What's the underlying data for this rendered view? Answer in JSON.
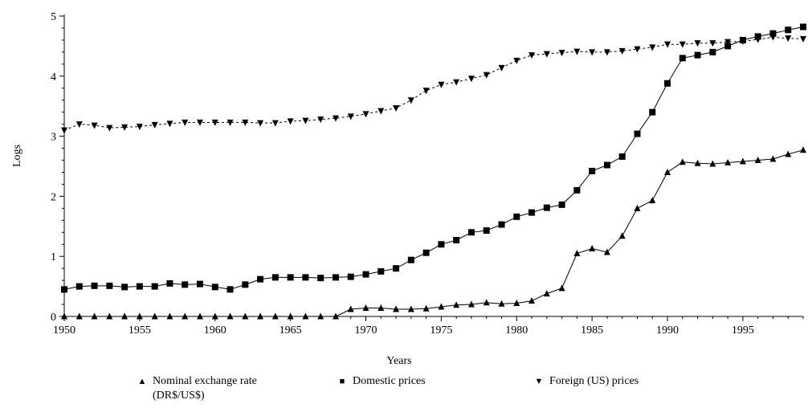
{
  "chart_data": {
    "type": "line",
    "title": "",
    "xlabel": "Years",
    "ylabel": "Logs",
    "xlim": [
      1950,
      1999
    ],
    "ylim": [
      0,
      5
    ],
    "xticks": [
      "1950",
      "1955",
      "1960",
      "1965",
      "1970",
      "1975",
      "1980",
      "1985",
      "1990",
      "1995"
    ],
    "yticks": [
      "0",
      "1",
      "2",
      "3",
      "4",
      "5"
    ],
    "grid": false,
    "legend_position": "bottom",
    "x": [
      1950,
      1951,
      1952,
      1953,
      1954,
      1955,
      1956,
      1957,
      1958,
      1959,
      1960,
      1961,
      1962,
      1963,
      1964,
      1965,
      1966,
      1967,
      1968,
      1969,
      1970,
      1971,
      1972,
      1973,
      1974,
      1975,
      1976,
      1977,
      1978,
      1979,
      1980,
      1981,
      1982,
      1983,
      1984,
      1985,
      1986,
      1987,
      1988,
      1989,
      1990,
      1991,
      1992,
      1993,
      1994,
      1995,
      1996,
      1997,
      1998,
      1999
    ],
    "series": [
      {
        "name": "Nominal exchange rate (DR$/US$)",
        "legend_line1": "Nominal exchange rate",
        "legend_line2": "(DR$/US$)",
        "marker": "triangle-up",
        "line_style": "solid",
        "values": [
          0,
          0,
          0,
          0,
          0,
          0,
          0,
          0,
          0,
          0,
          0,
          0,
          0,
          0,
          0,
          0,
          0,
          0,
          0,
          0.12,
          0.14,
          0.14,
          0.12,
          0.12,
          0.13,
          0.16,
          0.19,
          0.2,
          0.23,
          0.21,
          0.22,
          0.26,
          0.38,
          0.47,
          1.05,
          1.13,
          1.07,
          1.34,
          1.8,
          1.93,
          2.4,
          2.57,
          2.55,
          2.54,
          2.56,
          2.58,
          2.6,
          2.62,
          2.7,
          2.77
        ]
      },
      {
        "name": "Domestic prices",
        "legend_line1": "Domestic prices",
        "marker": "square",
        "line_style": "solid",
        "values": [
          0.45,
          0.5,
          0.51,
          0.51,
          0.49,
          0.5,
          0.5,
          0.55,
          0.53,
          0.54,
          0.49,
          0.45,
          0.53,
          0.62,
          0.65,
          0.65,
          0.65,
          0.64,
          0.65,
          0.66,
          0.7,
          0.75,
          0.8,
          0.94,
          1.06,
          1.2,
          1.27,
          1.4,
          1.43,
          1.53,
          1.66,
          1.73,
          1.81,
          1.86,
          2.1,
          2.42,
          2.52,
          2.66,
          3.04,
          3.4,
          3.88,
          4.3,
          4.35,
          4.4,
          4.5,
          4.6,
          4.66,
          4.71,
          4.77,
          4.82
        ]
      },
      {
        "name": "Foreign (US) prices",
        "legend_line1": "Foreign (US) prices",
        "marker": "triangle-down",
        "line_style": "dashed",
        "values": [
          3.1,
          3.2,
          3.18,
          3.14,
          3.15,
          3.16,
          3.19,
          3.21,
          3.23,
          3.23,
          3.23,
          3.23,
          3.23,
          3.22,
          3.22,
          3.25,
          3.26,
          3.28,
          3.3,
          3.33,
          3.37,
          3.42,
          3.47,
          3.6,
          3.76,
          3.86,
          3.9,
          3.96,
          4.02,
          4.14,
          4.26,
          4.35,
          4.37,
          4.39,
          4.41,
          4.4,
          4.4,
          4.42,
          4.45,
          4.48,
          4.53,
          4.53,
          4.55,
          4.55,
          4.57,
          4.58,
          4.61,
          4.65,
          4.63,
          4.62
        ]
      }
    ]
  }
}
